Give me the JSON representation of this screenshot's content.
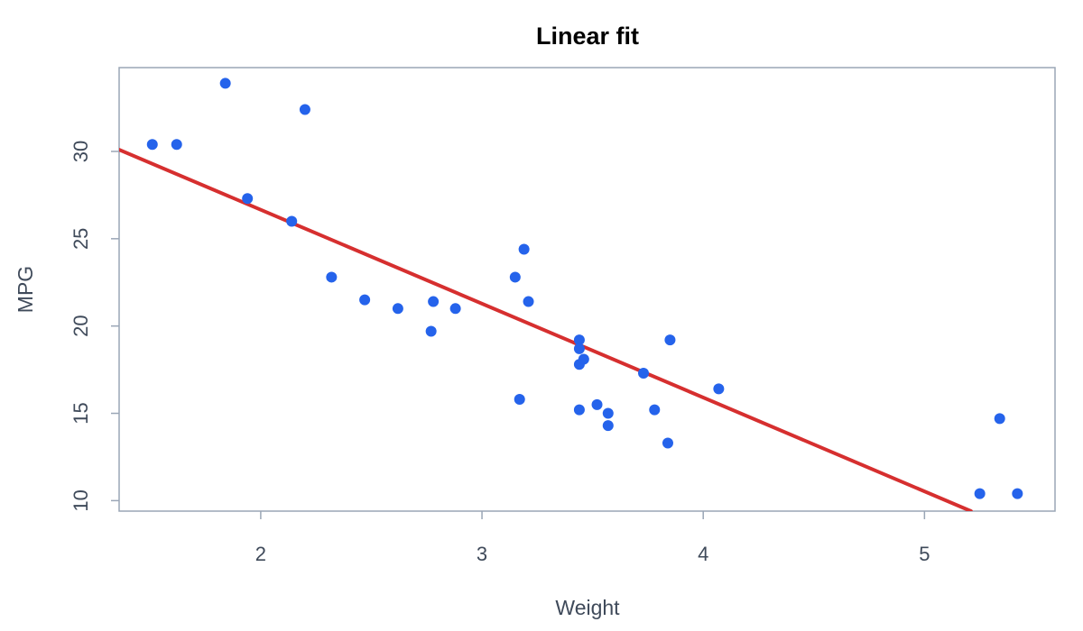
{
  "colors": {
    "points": "#2563eb",
    "fit_line": "#d62f2f",
    "frame": "#9aa6b6",
    "text": "#3f4a5a",
    "title": "#000000"
  },
  "chart_data": {
    "type": "scatter",
    "title": "Linear fit",
    "xlabel": "Weight",
    "ylabel": "MPG",
    "xlim": [
      1.36,
      5.59
    ],
    "ylim": [
      9.4,
      34.8
    ],
    "xticks": [
      2,
      3,
      4,
      5
    ],
    "yticks": [
      10,
      15,
      20,
      25,
      30
    ],
    "grid": false,
    "series": [
      {
        "type": "scatter",
        "x": [
          1.84,
          2.2,
          1.51,
          1.62,
          1.94,
          2.14,
          2.32,
          2.47,
          2.62,
          2.77,
          2.78,
          2.88,
          3.15,
          3.17,
          3.19,
          3.21,
          3.44,
          3.44,
          3.44,
          3.44,
          3.46,
          3.52,
          3.57,
          3.57,
          3.73,
          3.78,
          3.84,
          3.85,
          4.07,
          5.25,
          5.34,
          5.42
        ],
        "y": [
          33.9,
          32.4,
          30.4,
          30.4,
          27.3,
          26.0,
          22.8,
          21.5,
          21.0,
          19.7,
          21.4,
          21.0,
          22.8,
          15.8,
          24.4,
          21.4,
          19.2,
          18.7,
          17.8,
          15.2,
          18.1,
          15.5,
          15.0,
          14.3,
          17.3,
          15.2,
          13.3,
          19.2,
          16.4,
          10.4,
          14.7,
          10.4
        ]
      },
      {
        "type": "line",
        "x": [
          1.36,
          5.21
        ],
        "y": [
          30.1,
          9.4
        ]
      }
    ]
  }
}
